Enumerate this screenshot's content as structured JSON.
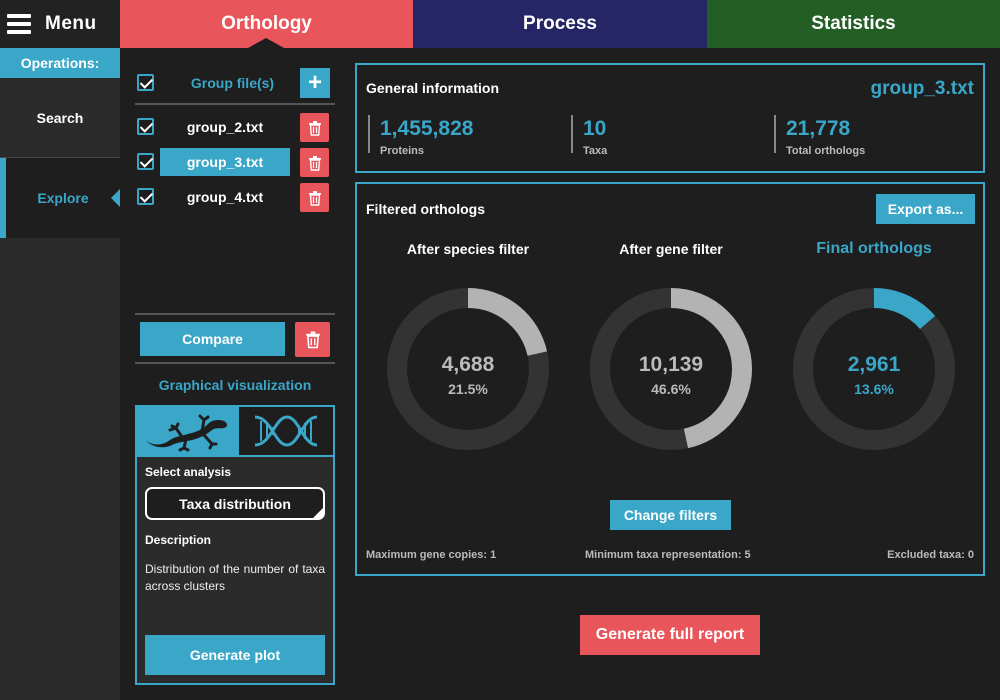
{
  "menu": {
    "label": "Menu"
  },
  "sidebar": {
    "operations_label": "Operations:",
    "items": [
      {
        "label": "Search"
      },
      {
        "label": "Explore"
      }
    ]
  },
  "tabs": [
    {
      "label": "Orthology",
      "color": "#e8555b"
    },
    {
      "label": "Process",
      "color": "#262565"
    },
    {
      "label": "Statistics",
      "color": "#235e25"
    }
  ],
  "files": {
    "header_label": "Group file(s)",
    "items": [
      {
        "name": "group_2.txt",
        "checked": true
      },
      {
        "name": "group_3.txt",
        "checked": true,
        "selected": true
      },
      {
        "name": "group_4.txt",
        "checked": true
      }
    ],
    "compare_label": "Compare"
  },
  "visualization": {
    "title": "Graphical visualization",
    "tabs": [
      {
        "icon": "gecko-icon"
      },
      {
        "icon": "dna-icon"
      }
    ],
    "select_label": "Select analysis",
    "selected_analysis": "Taxa distribution",
    "description_label": "Description",
    "description": "Distribution of the number of taxa across clusters",
    "generate_label": "Generate plot"
  },
  "general_info": {
    "title": "General information",
    "file": "group_3.txt",
    "stats": [
      {
        "value": "1,455,828",
        "label": "Proteins"
      },
      {
        "value": "10",
        "label": "Taxa"
      },
      {
        "value": "21,778",
        "label": "Total orthologs"
      }
    ]
  },
  "filtered": {
    "title": "Filtered orthologs",
    "export_label": "Export as...",
    "donuts": [
      {
        "title": "After species filter",
        "value": "4,688",
        "percent": "21.5%",
        "fraction": 0.215,
        "color": "#b3b3b3",
        "highlight": false
      },
      {
        "title": "After gene filter",
        "value": "10,139",
        "percent": "46.6%",
        "fraction": 0.466,
        "color": "#b3b3b3",
        "highlight": false
      },
      {
        "title": "Final orthologs",
        "value": "2,961",
        "percent": "13.6%",
        "fraction": 0.136,
        "color": "#3aa6c8",
        "highlight": true
      }
    ],
    "change_filters_label": "Change filters",
    "footer": {
      "max_gene_copies": "Maximum gene copies: 1",
      "min_taxa": "Minimum taxa representation: 5",
      "excluded_taxa": "Excluded taxa: 0"
    }
  },
  "report_label": "Generate full report",
  "colors": {
    "accent": "#3aa6c8",
    "danger": "#e8555b",
    "ring_bg": "#333333"
  }
}
